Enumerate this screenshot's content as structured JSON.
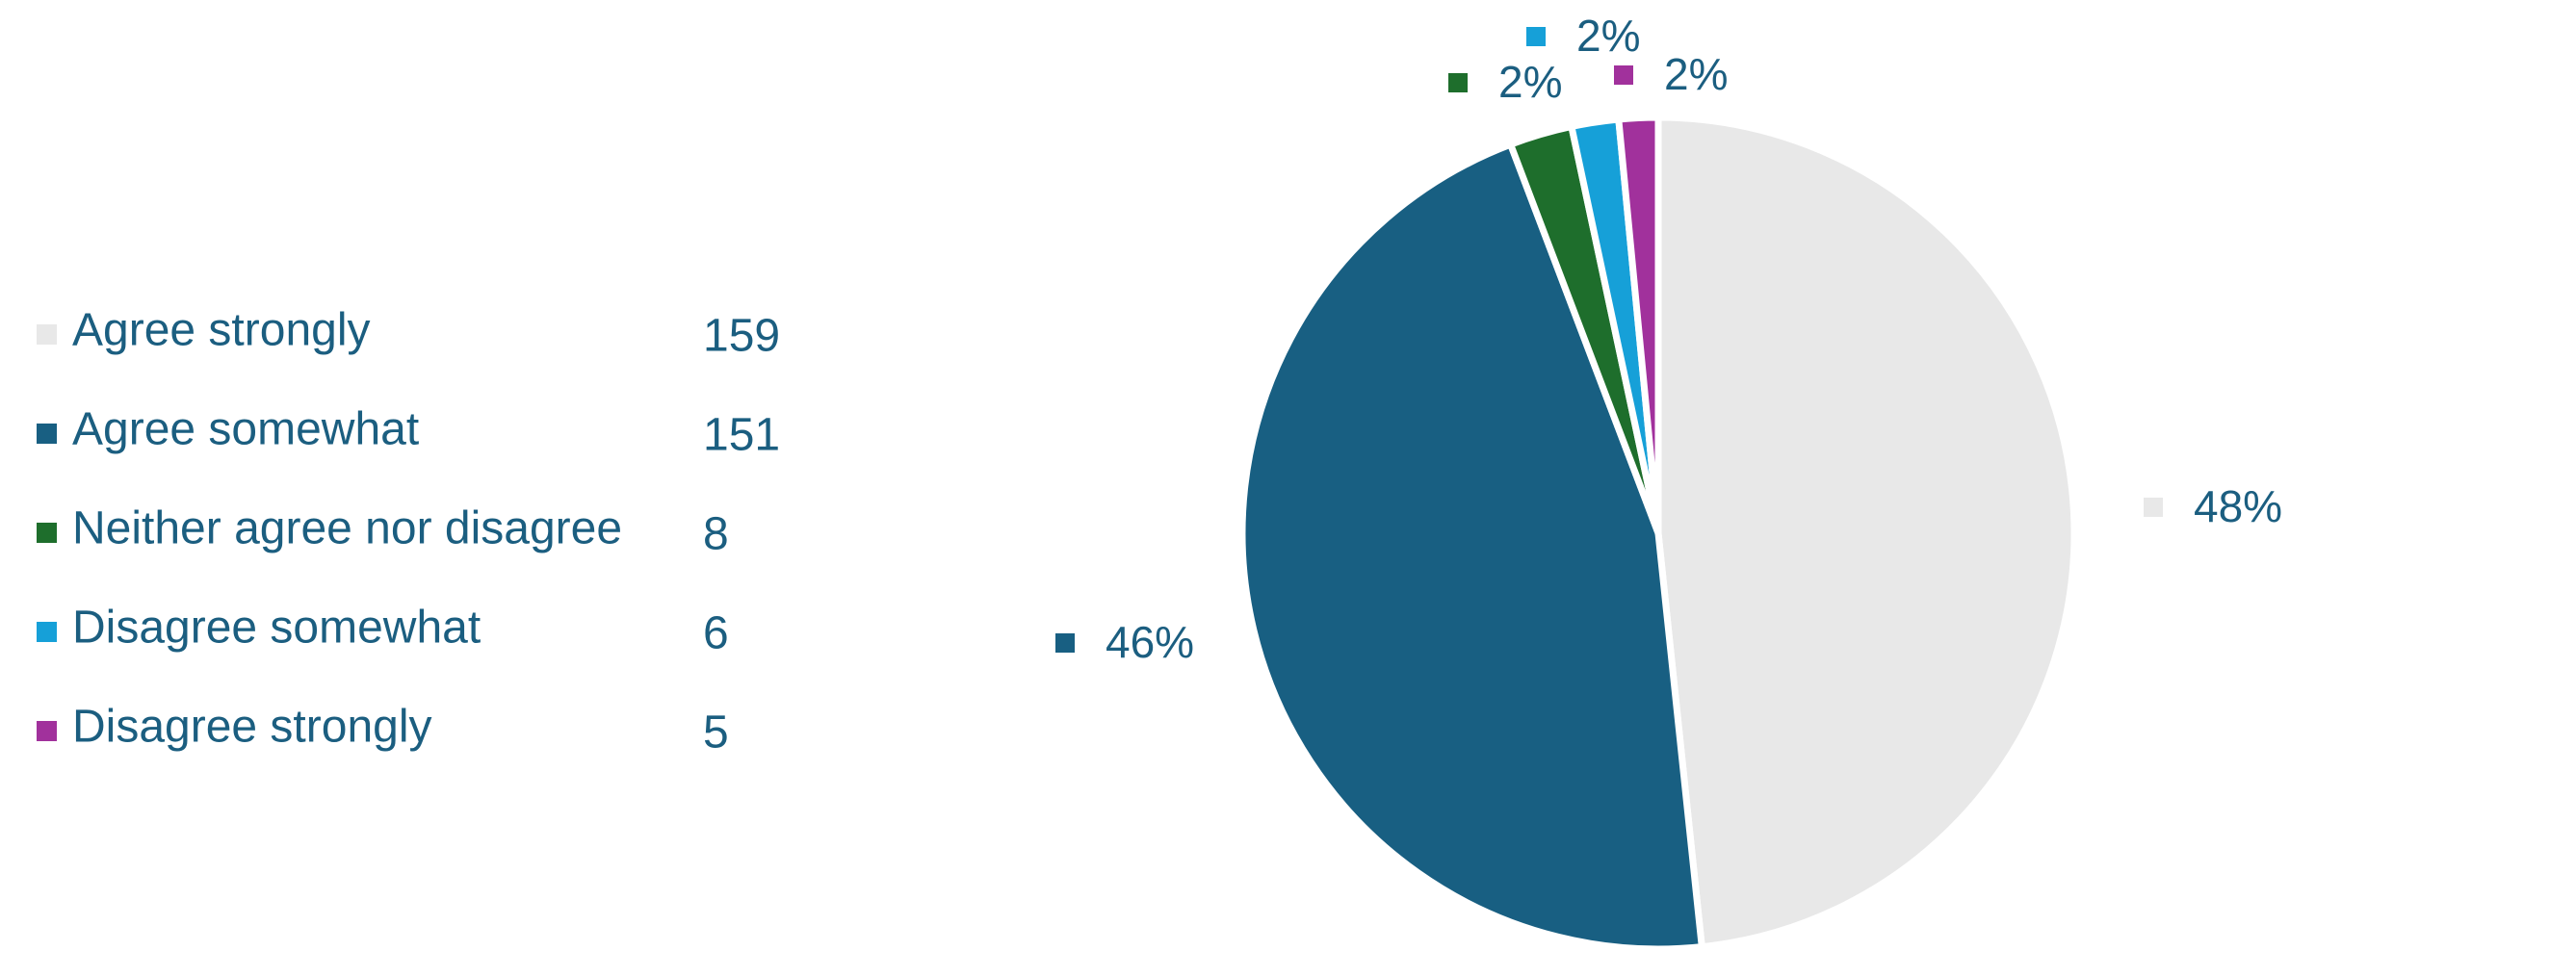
{
  "chart_data": {
    "type": "pie",
    "categories": [
      "Agree strongly",
      "Agree somewhat",
      "Neither agree nor disagree",
      "Disagree somewhat",
      "Disagree strongly"
    ],
    "values": [
      159,
      151,
      8,
      6,
      5
    ],
    "value_labels": [
      "48%",
      "46%",
      "2%",
      "2%",
      "2%"
    ],
    "colors": [
      "#e8e8e8",
      "#185f82",
      "#1e6e2c",
      "#16a0d8",
      "#a1319c"
    ]
  }
}
